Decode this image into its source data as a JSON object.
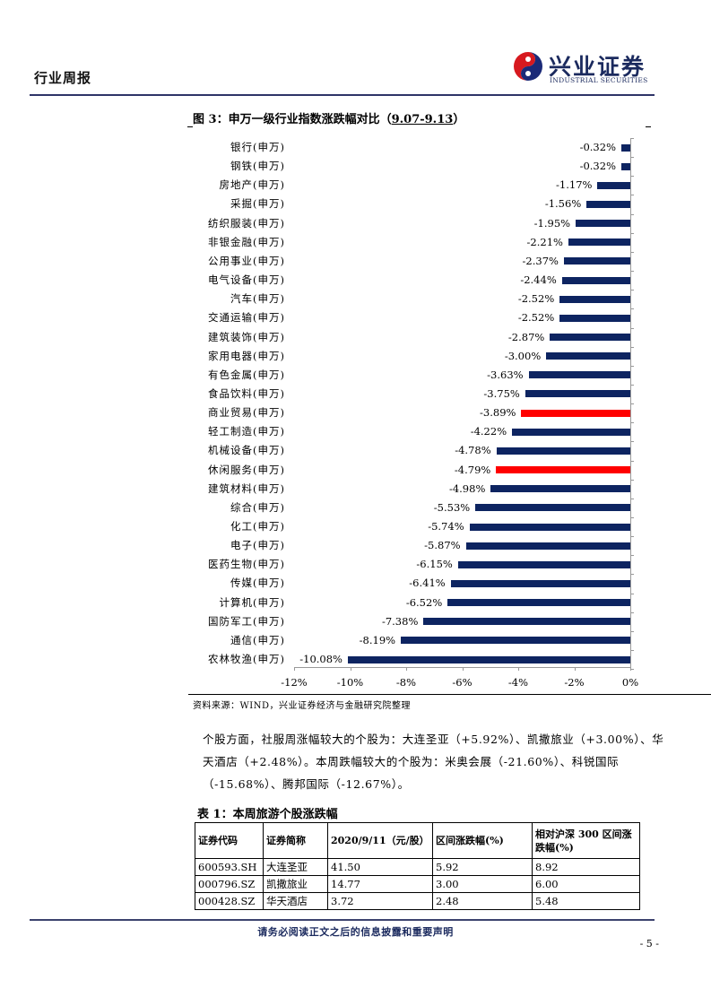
{
  "header": {
    "title": "行业周报",
    "logo_cn": "兴业证券",
    "logo_en": "INDUSTRIAL SECURITIES",
    "rule_color": "#2e3468"
  },
  "figure": {
    "prefix": "图 3：申万一级行业指数涨跌幅对比（",
    "range": "9.07-9.13",
    "suffix": "）",
    "source": "资料来源：WIND，兴业证券经济与金融研究院整理"
  },
  "chart_data": {
    "type": "bar",
    "orientation": "horizontal",
    "title": "申万一级行业指数涨跌幅对比（9.07-9.13）",
    "xlabel": "",
    "ylabel": "",
    "xlim": [
      -12,
      0
    ],
    "x_ticks": [
      "-12%",
      "-10%",
      "-8%",
      "-6%",
      "-4%",
      "-2%",
      "0%"
    ],
    "grid": false,
    "legend": null,
    "colors": {
      "default": "#0d2461",
      "highlight": "#ff0000"
    },
    "categories": [
      "银行(申万)",
      "钢铁(申万)",
      "房地产(申万)",
      "采掘(申万)",
      "纺织服装(申万)",
      "非银金融(申万)",
      "公用事业(申万)",
      "电气设备(申万)",
      "汽车(申万)",
      "交通运输(申万)",
      "建筑装饰(申万)",
      "家用电器(申万)",
      "有色金属(申万)",
      "食品饮料(申万)",
      "商业贸易(申万)",
      "轻工制造(申万)",
      "机械设备(申万)",
      "休闲服务(申万)",
      "建筑材料(申万)",
      "综合(申万)",
      "化工(申万)",
      "电子(申万)",
      "医药生物(申万)",
      "传媒(申万)",
      "计算机(申万)",
      "国防军工(申万)",
      "通信(申万)",
      "农林牧渔(申万)"
    ],
    "values": [
      -0.32,
      -0.32,
      -1.17,
      -1.56,
      -1.95,
      -2.21,
      -2.37,
      -2.44,
      -2.52,
      -2.52,
      -2.87,
      -3.0,
      -3.63,
      -3.75,
      -3.89,
      -4.22,
      -4.78,
      -4.79,
      -4.98,
      -5.53,
      -5.74,
      -5.87,
      -6.15,
      -6.41,
      -6.52,
      -7.38,
      -8.19,
      -10.08
    ],
    "value_labels": [
      "-0.32%",
      "-0.32%",
      "-1.17%",
      "-1.56%",
      "-1.95%",
      "-2.21%",
      "-2.37%",
      "-2.44%",
      "-2.52%",
      "-2.52%",
      "-2.87%",
      "-3.00%",
      "-3.63%",
      "-3.75%",
      "-3.89%",
      "-4.22%",
      "-4.78%",
      "-4.79%",
      "-4.98%",
      "-5.53%",
      "-5.74%",
      "-5.87%",
      "-6.15%",
      "-6.41%",
      "-6.52%",
      "-7.38%",
      "-8.19%",
      "-10.08%"
    ],
    "highlighted": [
      "商业贸易(申万)",
      "休闲服务(申万)"
    ]
  },
  "paragraph": "个股方面，社服周涨幅较大的个股为：大连圣亚（+5.92%）、凯撒旅业（+3.00%）、华天酒店（+2.48%）。本周跌幅较大的个股为：米奥会展（-21.60%）、科锐国际（-15.68%）、腾邦国际（-12.67%）。",
  "table": {
    "title": "表 1：本周旅游个股涨跌幅",
    "headers": [
      "证券代码",
      "证券简称",
      "2020/9/11（元/股）",
      "区间涨跌幅(%)",
      "相对沪深 300 区间涨跌幅(%)"
    ],
    "rows": [
      [
        "600593.SH",
        "大连圣亚",
        "41.50",
        "5.92",
        "8.92"
      ],
      [
        "000796.SZ",
        "凯撒旅业",
        "14.77",
        "3.00",
        "6.00"
      ],
      [
        "000428.SZ",
        "华天酒店",
        "3.72",
        "2.48",
        "5.48"
      ]
    ]
  },
  "footer": {
    "disclaimer": "请务必阅读正文之后的信息披露和重要声明",
    "page": "- 5 -"
  }
}
